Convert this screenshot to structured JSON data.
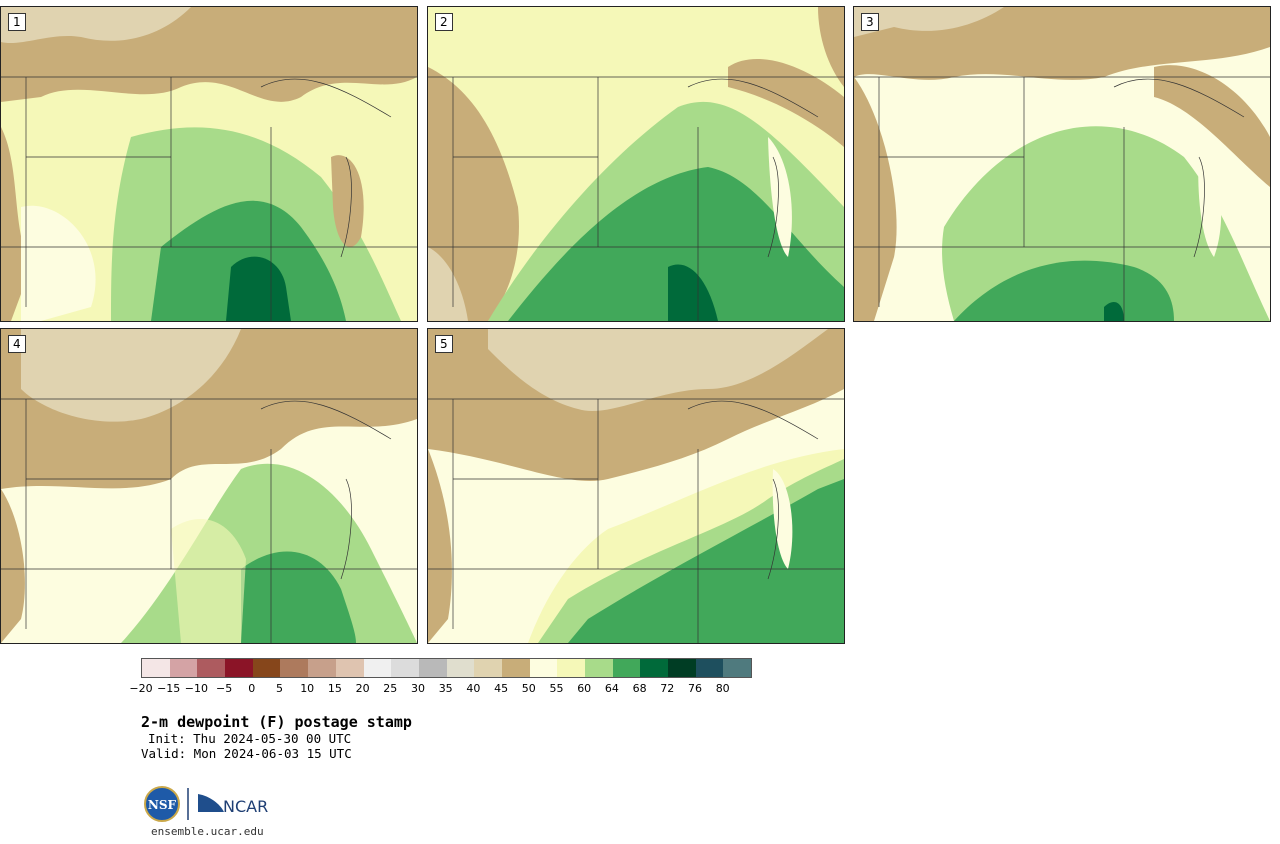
{
  "members": [
    "1",
    "2",
    "3",
    "4",
    "5"
  ],
  "colorbar": {
    "colors": [
      "#f4e6e6",
      "#d4a3a5",
      "#ad5b5f",
      "#8b1427",
      "#86461b",
      "#ad7a5d",
      "#c7a08b",
      "#dfc4b0",
      "#f0f0f0",
      "#dcdcdc",
      "#b9b9b9",
      "#e0dece",
      "#e0d3b0",
      "#c8ad79",
      "#fdfde0",
      "#f5f8b8",
      "#a8db8a",
      "#41a85a",
      "#006a3a",
      "#003d24",
      "#1e4f5e",
      "#4f7a7e"
    ],
    "ticks": [
      "−20",
      "−15",
      "−10",
      "−5",
      "0",
      "5",
      "10",
      "15",
      "20",
      "25",
      "30",
      "35",
      "40",
      "45",
      "50",
      "55",
      "60",
      "64",
      "68",
      "72",
      "76",
      "80"
    ]
  },
  "title": "2-m dewpoint (F) postage stamp",
  "init": "Init: Thu 2024-05-30 00 UTC",
  "valid": "Valid: Mon 2024-06-03 15 UTC",
  "logo": {
    "nsf": "NSF",
    "ncar": "NCAR"
  },
  "site": "ensemble.ucar.edu"
}
